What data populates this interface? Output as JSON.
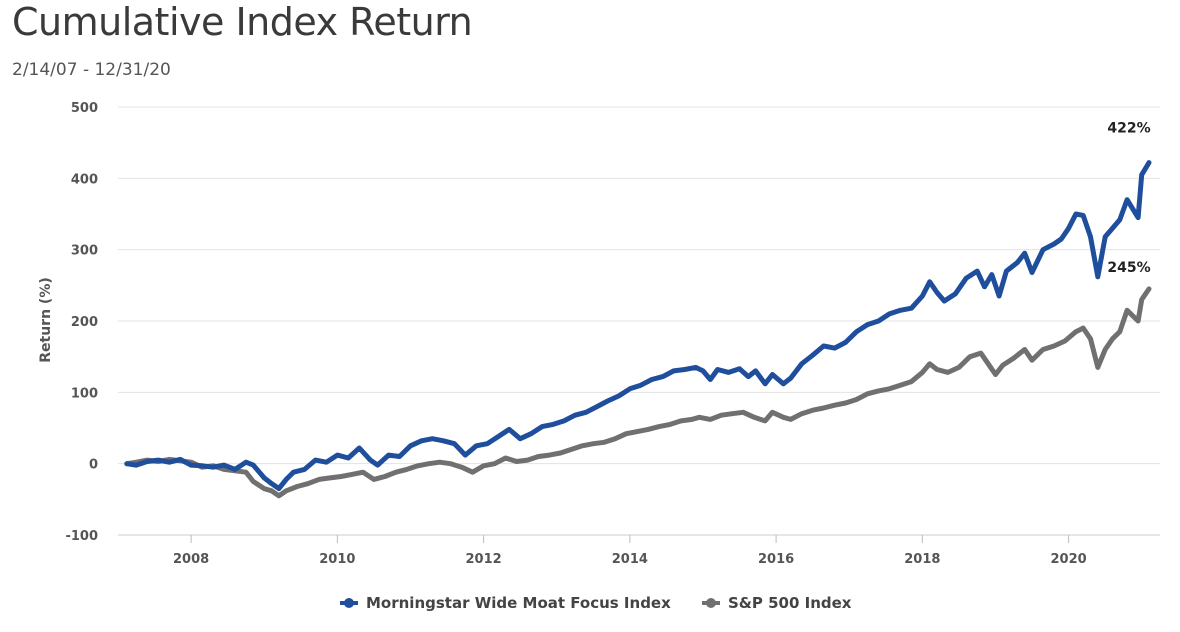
{
  "chart_data": {
    "type": "line",
    "title": "Cumulative Index Return",
    "subtitle": "2/14/07 - 12/31/20",
    "ylabel": "Return (%)",
    "xlabel": "",
    "ylim": [
      -100,
      500
    ],
    "yticks": [
      500,
      400,
      300,
      200,
      100,
      0,
      -100
    ],
    "xlim": [
      2007.0,
      2021.25
    ],
    "xticks": [
      2008,
      2010,
      2012,
      2014,
      2016,
      2018,
      2020
    ],
    "grid": true,
    "legend_position": "bottom-center",
    "series": [
      {
        "name": "Morningstar Wide Moat Focus Index",
        "color": "#1f4e9c",
        "end_label": "422%",
        "points": [
          [
            2007.12,
            0
          ],
          [
            2007.25,
            -2
          ],
          [
            2007.4,
            3
          ],
          [
            2007.55,
            5
          ],
          [
            2007.7,
            2
          ],
          [
            2007.85,
            6
          ],
          [
            2008.0,
            -2
          ],
          [
            2008.15,
            -3
          ],
          [
            2008.3,
            -5
          ],
          [
            2008.45,
            -2
          ],
          [
            2008.6,
            -8
          ],
          [
            2008.75,
            2
          ],
          [
            2008.85,
            -2
          ],
          [
            2009.0,
            -20
          ],
          [
            2009.1,
            -28
          ],
          [
            2009.2,
            -35
          ],
          [
            2009.3,
            -22
          ],
          [
            2009.4,
            -12
          ],
          [
            2009.55,
            -8
          ],
          [
            2009.7,
            5
          ],
          [
            2009.85,
            2
          ],
          [
            2010.0,
            12
          ],
          [
            2010.15,
            8
          ],
          [
            2010.3,
            22
          ],
          [
            2010.45,
            5
          ],
          [
            2010.55,
            -2
          ],
          [
            2010.7,
            12
          ],
          [
            2010.85,
            10
          ],
          [
            2011.0,
            25
          ],
          [
            2011.15,
            32
          ],
          [
            2011.3,
            35
          ],
          [
            2011.45,
            32
          ],
          [
            2011.6,
            28
          ],
          [
            2011.75,
            12
          ],
          [
            2011.9,
            25
          ],
          [
            2012.05,
            28
          ],
          [
            2012.2,
            38
          ],
          [
            2012.35,
            48
          ],
          [
            2012.5,
            35
          ],
          [
            2012.65,
            42
          ],
          [
            2012.8,
            52
          ],
          [
            2012.95,
            55
          ],
          [
            2013.1,
            60
          ],
          [
            2013.25,
            68
          ],
          [
            2013.4,
            72
          ],
          [
            2013.55,
            80
          ],
          [
            2013.7,
            88
          ],
          [
            2013.85,
            95
          ],
          [
            2014.0,
            105
          ],
          [
            2014.15,
            110
          ],
          [
            2014.3,
            118
          ],
          [
            2014.45,
            122
          ],
          [
            2014.6,
            130
          ],
          [
            2014.75,
            132
          ],
          [
            2014.9,
            135
          ],
          [
            2015.0,
            130
          ],
          [
            2015.1,
            118
          ],
          [
            2015.2,
            132
          ],
          [
            2015.35,
            128
          ],
          [
            2015.5,
            133
          ],
          [
            2015.62,
            122
          ],
          [
            2015.72,
            130
          ],
          [
            2015.85,
            112
          ],
          [
            2015.95,
            125
          ],
          [
            2016.1,
            112
          ],
          [
            2016.2,
            120
          ],
          [
            2016.35,
            140
          ],
          [
            2016.5,
            152
          ],
          [
            2016.65,
            165
          ],
          [
            2016.8,
            162
          ],
          [
            2016.95,
            170
          ],
          [
            2017.1,
            185
          ],
          [
            2017.25,
            195
          ],
          [
            2017.4,
            200
          ],
          [
            2017.55,
            210
          ],
          [
            2017.7,
            215
          ],
          [
            2017.85,
            218
          ],
          [
            2018.0,
            235
          ],
          [
            2018.1,
            255
          ],
          [
            2018.2,
            240
          ],
          [
            2018.3,
            228
          ],
          [
            2018.45,
            238
          ],
          [
            2018.6,
            260
          ],
          [
            2018.75,
            270
          ],
          [
            2018.85,
            248
          ],
          [
            2018.95,
            265
          ],
          [
            2019.05,
            235
          ],
          [
            2019.15,
            270
          ],
          [
            2019.3,
            282
          ],
          [
            2019.4,
            295
          ],
          [
            2019.5,
            268
          ],
          [
            2019.65,
            300
          ],
          [
            2019.8,
            308
          ],
          [
            2019.9,
            315
          ],
          [
            2020.0,
            330
          ],
          [
            2020.1,
            350
          ],
          [
            2020.2,
            348
          ],
          [
            2020.3,
            318
          ],
          [
            2020.4,
            262
          ],
          [
            2020.5,
            318
          ],
          [
            2020.6,
            330
          ],
          [
            2020.7,
            342
          ],
          [
            2020.8,
            370
          ],
          [
            2020.95,
            345
          ],
          [
            2021.0,
            405
          ],
          [
            2021.1,
            422
          ]
        ]
      },
      {
        "name": "S&P 500 Index",
        "color": "#707070",
        "end_label": "245%",
        "points": [
          [
            2007.12,
            0
          ],
          [
            2007.25,
            2
          ],
          [
            2007.4,
            5
          ],
          [
            2007.55,
            3
          ],
          [
            2007.7,
            6
          ],
          [
            2007.85,
            4
          ],
          [
            2008.0,
            2
          ],
          [
            2008.15,
            -5
          ],
          [
            2008.3,
            -3
          ],
          [
            2008.45,
            -8
          ],
          [
            2008.6,
            -10
          ],
          [
            2008.75,
            -12
          ],
          [
            2008.85,
            -25
          ],
          [
            2009.0,
            -35
          ],
          [
            2009.1,
            -38
          ],
          [
            2009.2,
            -45
          ],
          [
            2009.3,
            -38
          ],
          [
            2009.45,
            -32
          ],
          [
            2009.6,
            -28
          ],
          [
            2009.75,
            -22
          ],
          [
            2009.9,
            -20
          ],
          [
            2010.05,
            -18
          ],
          [
            2010.2,
            -15
          ],
          [
            2010.35,
            -12
          ],
          [
            2010.5,
            -22
          ],
          [
            2010.65,
            -18
          ],
          [
            2010.8,
            -12
          ],
          [
            2010.95,
            -8
          ],
          [
            2011.1,
            -3
          ],
          [
            2011.25,
            0
          ],
          [
            2011.4,
            2
          ],
          [
            2011.55,
            0
          ],
          [
            2011.7,
            -5
          ],
          [
            2011.85,
            -12
          ],
          [
            2012.0,
            -3
          ],
          [
            2012.15,
            0
          ],
          [
            2012.3,
            8
          ],
          [
            2012.45,
            3
          ],
          [
            2012.6,
            5
          ],
          [
            2012.75,
            10
          ],
          [
            2012.9,
            12
          ],
          [
            2013.05,
            15
          ],
          [
            2013.2,
            20
          ],
          [
            2013.35,
            25
          ],
          [
            2013.5,
            28
          ],
          [
            2013.65,
            30
          ],
          [
            2013.8,
            35
          ],
          [
            2013.95,
            42
          ],
          [
            2014.1,
            45
          ],
          [
            2014.25,
            48
          ],
          [
            2014.4,
            52
          ],
          [
            2014.55,
            55
          ],
          [
            2014.7,
            60
          ],
          [
            2014.85,
            62
          ],
          [
            2014.95,
            65
          ],
          [
            2015.1,
            62
          ],
          [
            2015.25,
            68
          ],
          [
            2015.4,
            70
          ],
          [
            2015.55,
            72
          ],
          [
            2015.7,
            65
          ],
          [
            2015.85,
            60
          ],
          [
            2015.95,
            72
          ],
          [
            2016.1,
            65
          ],
          [
            2016.2,
            62
          ],
          [
            2016.35,
            70
          ],
          [
            2016.5,
            75
          ],
          [
            2016.65,
            78
          ],
          [
            2016.8,
            82
          ],
          [
            2016.95,
            85
          ],
          [
            2017.1,
            90
          ],
          [
            2017.25,
            98
          ],
          [
            2017.4,
            102
          ],
          [
            2017.55,
            105
          ],
          [
            2017.7,
            110
          ],
          [
            2017.85,
            115
          ],
          [
            2018.0,
            128
          ],
          [
            2018.1,
            140
          ],
          [
            2018.2,
            132
          ],
          [
            2018.35,
            128
          ],
          [
            2018.5,
            135
          ],
          [
            2018.65,
            150
          ],
          [
            2018.8,
            155
          ],
          [
            2018.9,
            140
          ],
          [
            2019.0,
            125
          ],
          [
            2019.1,
            138
          ],
          [
            2019.25,
            148
          ],
          [
            2019.4,
            160
          ],
          [
            2019.5,
            145
          ],
          [
            2019.65,
            160
          ],
          [
            2019.8,
            165
          ],
          [
            2019.95,
            172
          ],
          [
            2020.1,
            185
          ],
          [
            2020.2,
            190
          ],
          [
            2020.3,
            175
          ],
          [
            2020.4,
            135
          ],
          [
            2020.5,
            160
          ],
          [
            2020.6,
            175
          ],
          [
            2020.7,
            185
          ],
          [
            2020.8,
            215
          ],
          [
            2020.95,
            200
          ],
          [
            2021.0,
            230
          ],
          [
            2021.1,
            245
          ]
        ]
      }
    ]
  }
}
